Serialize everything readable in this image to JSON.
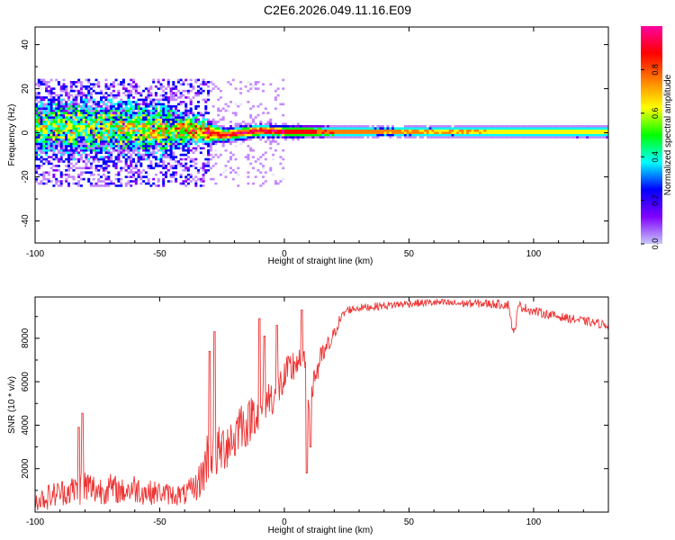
{
  "title": "C2E6.2026.049.11.16.E09",
  "chart_data": [
    {
      "type": "heatmap",
      "title": "C2E6.2026.049.11.16.E09",
      "xlabel": "Height of straight line (km)",
      "ylabel": "Frequency (Hz)",
      "xlim": [
        -100,
        130
      ],
      "ylim": [
        -50,
        48
      ],
      "xticks": [
        -100,
        -50,
        0,
        50,
        100
      ],
      "yticks": [
        -40,
        -20,
        0,
        20,
        40
      ],
      "colorbar": {
        "label": "Normalized spectral amplitude",
        "range": [
          0,
          1
        ],
        "ticks": [
          0.0,
          0.2,
          0.4,
          0.6,
          0.8
        ],
        "tick_labels": [
          "0.0",
          "0.2",
          "0.4",
          "0.6",
          "0.8"
        ],
        "colors": [
          "#c8c8f8",
          "#8000ff",
          "#0000ff",
          "#00ffff",
          "#00ff00",
          "#ffff00",
          "#ff8000",
          "#ff0000",
          "#ff00a0"
        ]
      },
      "band": {
        "center_freq": [
          [
            -100,
            3
          ],
          [
            -60,
            2
          ],
          [
            -35,
            1
          ],
          [
            -25,
            -1
          ],
          [
            -10,
            1
          ],
          [
            0,
            0.5
          ],
          [
            30,
            0.5
          ],
          [
            130,
            0.5
          ]
        ],
        "halfwidth": [
          [
            -100,
            14
          ],
          [
            -50,
            12
          ],
          [
            -35,
            6
          ],
          [
            -25,
            3
          ],
          [
            0,
            2.5
          ],
          [
            40,
            2
          ],
          [
            130,
            2.5
          ]
        ],
        "peak_amplitude": [
          [
            -100,
            0.5
          ],
          [
            -45,
            0.6
          ],
          [
            -30,
            0.9
          ],
          [
            0,
            0.95
          ],
          [
            30,
            0.8
          ],
          [
            130,
            0.65
          ]
        ]
      }
    },
    {
      "type": "line",
      "xlabel": "Height of straight line (km)",
      "ylabel": "SNR (10 * v/v)",
      "xlim": [
        -100,
        130
      ],
      "ylim": [
        0,
        9900
      ],
      "xticks": [
        -100,
        -50,
        0,
        50,
        100
      ],
      "yticks": [
        2000,
        4000,
        6000,
        8000
      ],
      "series": [
        {
          "name": "SNR",
          "color": "#ee3333",
          "x": [
            -100,
            -95,
            -90,
            -85,
            -80,
            -75,
            -70,
            -65,
            -60,
            -55,
            -50,
            -45,
            -40,
            -35,
            -32,
            -30,
            -28,
            -25,
            -22,
            -20,
            -18,
            -15,
            -12,
            -10,
            -8,
            -5,
            -3,
            0,
            3,
            5,
            7,
            9,
            10,
            12,
            15,
            18,
            20,
            22,
            25,
            30,
            35,
            40,
            50,
            60,
            70,
            80,
            90,
            92,
            94,
            100,
            110,
            120,
            130
          ],
          "values": [
            500,
            700,
            900,
            1000,
            1200,
            1000,
            1100,
            950,
            1100,
            900,
            900,
            800,
            800,
            1200,
            2000,
            3000,
            2600,
            2900,
            3400,
            3300,
            4200,
            3900,
            4800,
            4300,
            5200,
            5300,
            5600,
            6100,
            6600,
            7000,
            6500,
            6800,
            5500,
            6200,
            7100,
            7700,
            8200,
            8800,
            9300,
            9400,
            9450,
            9500,
            9600,
            9650,
            9600,
            9600,
            9550,
            8100,
            9500,
            9250,
            9000,
            8800,
            8600
          ],
          "noise": [
            450,
            600,
            600,
            700,
            900,
            700,
            700,
            600,
            700,
            600,
            500,
            500,
            500,
            700,
            1200,
            1400,
            1200,
            1200,
            1300,
            1200,
            1200,
            1000,
            1200,
            1000,
            1000,
            900,
            900,
            900,
            900,
            900,
            800,
            800,
            1200,
            900,
            600,
            500,
            300,
            250,
            200,
            180,
            180,
            180,
            180,
            180,
            180,
            200,
            220,
            220,
            220,
            220,
            200,
            200,
            200
          ],
          "spikes": [
            [
              -81,
              4550
            ],
            [
              -82.5,
              3900
            ],
            [
              -28,
              8300
            ],
            [
              -30,
              7400
            ],
            [
              -10,
              8900
            ],
            [
              -8,
              8100
            ],
            [
              -3,
              8600
            ],
            [
              7,
              9300
            ],
            [
              9,
              1800
            ],
            [
              10.5,
              3000
            ]
          ]
        }
      ]
    }
  ]
}
